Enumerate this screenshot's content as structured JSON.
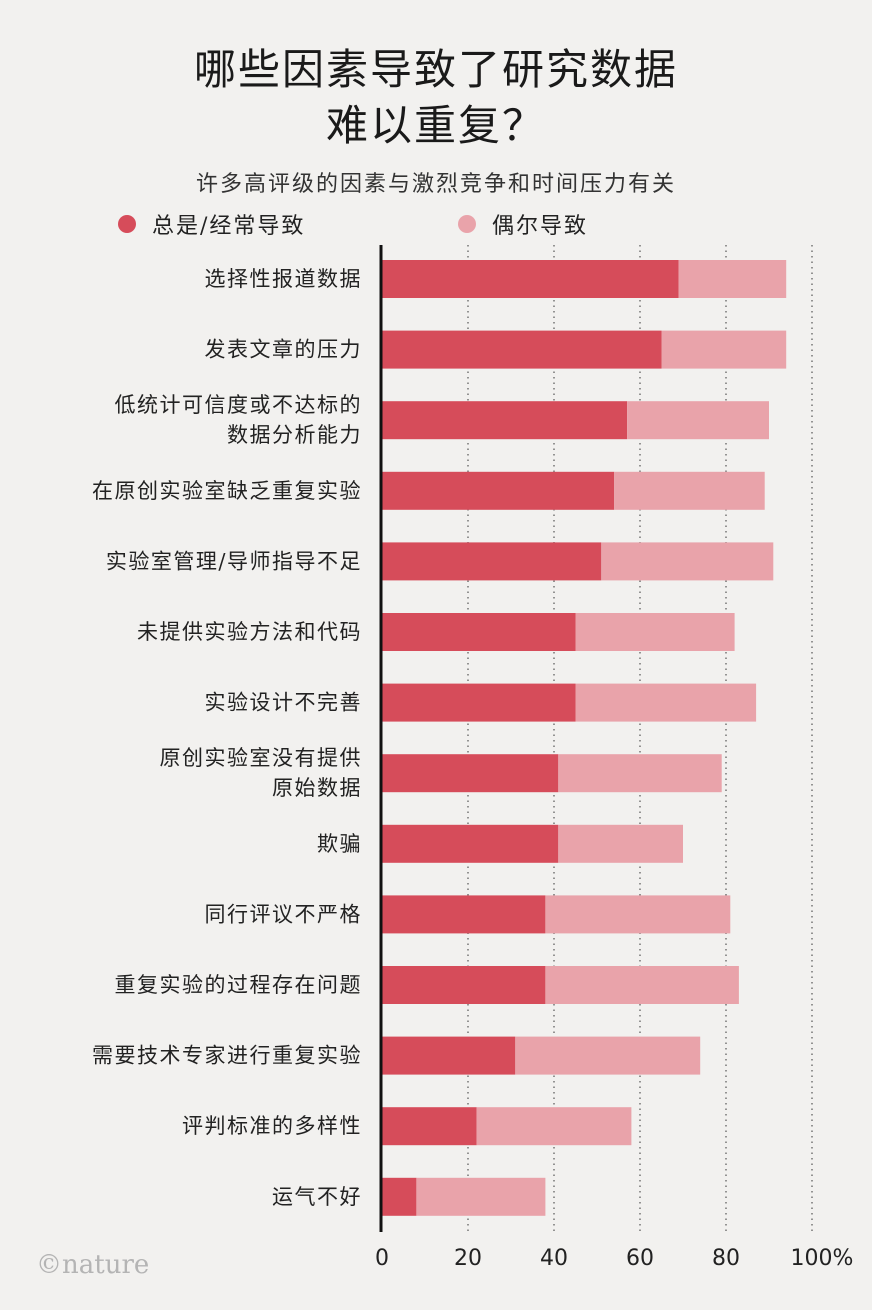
{
  "header": {
    "title_line1": "哪些因素导致了研究数据",
    "title_line2": "难以重复？",
    "subtitle": "许多高评级的因素与激烈竞争和时间压力有关"
  },
  "legend": [
    {
      "label": "总是/经常导致",
      "color": "#d64c5a"
    },
    {
      "label": "偶尔导致",
      "color": "#e9a3aa"
    }
  ],
  "branding": {
    "logo_text": "©nature"
  },
  "chart_data": {
    "type": "bar",
    "orientation": "horizontal",
    "stacked": true,
    "categories": [
      [
        "选择性报道数据"
      ],
      [
        "发表文章的压力"
      ],
      [
        "低统计可信度或不达标的",
        "数据分析能力"
      ],
      [
        "在原创实验室缺乏重复实验"
      ],
      [
        "实验室管理/导师指导不足"
      ],
      [
        "未提供实验方法和代码"
      ],
      [
        "实验设计不完善"
      ],
      [
        "原创实验室没有提供",
        "原始数据"
      ],
      [
        "欺骗"
      ],
      [
        "同行评议不严格"
      ],
      [
        "重复实验的过程存在问题"
      ],
      [
        "需要技术专家进行重复实验"
      ],
      [
        "评判标准的多样性"
      ],
      [
        "运气不好"
      ]
    ],
    "series": [
      {
        "name": "总是/经常导致",
        "color": "#d64c5a",
        "values": [
          69,
          65,
          57,
          54,
          51,
          45,
          45,
          41,
          41,
          38,
          38,
          31,
          22,
          8
        ]
      },
      {
        "name": "偶尔导致",
        "color": "#e9a3aa",
        "values": [
          25,
          29,
          33,
          35,
          40,
          37,
          42,
          38,
          29,
          43,
          45,
          43,
          36,
          30
        ]
      }
    ],
    "x_ticks": [
      "0",
      "20",
      "40",
      "60",
      "80",
      "100%"
    ],
    "xlim": [
      0,
      100
    ],
    "grid": "dotted vertical lines at 20, 40, 60, 80, 100"
  }
}
